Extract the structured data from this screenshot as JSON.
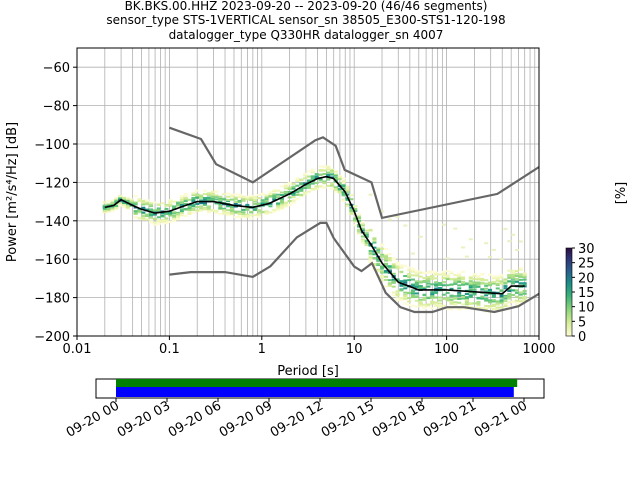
{
  "title_lines": [
    "BK.BKS.00.HHZ   2023-09-20 -- 2023-09-20  (46/46 segments)",
    "sensor_type STS-1VERTICAL sensor_sn 38505_E300-STS1-120-198",
    "datalogger_type Q330HR datalogger_sn 4007"
  ],
  "chart_data": [
    {
      "type": "heatmap",
      "xlabel": "Period [s]",
      "ylabel": "Power [m²/s⁴/Hz] [dB]",
      "xscale": "log",
      "xlim": [
        0.01,
        1000
      ],
      "ylim": [
        -200,
        -50
      ],
      "xtick_labels": [
        "0.01",
        "0.1",
        "1",
        "10",
        "100",
        "1000"
      ],
      "ytick_labels": [
        "−60",
        "−80",
        "−100",
        "−120",
        "−140",
        "−160",
        "−180",
        "−200"
      ],
      "yticks": [
        -60,
        -80,
        -100,
        -120,
        -140,
        -160,
        -180,
        -200
      ],
      "grid": true,
      "colorbar": {
        "label": "[%]",
        "range": [
          0,
          30
        ],
        "tick_labels": [
          "0",
          "5",
          "10",
          "15",
          "20",
          "25",
          "30"
        ],
        "ticks": [
          0,
          5,
          10,
          15,
          20,
          25,
          30
        ]
      },
      "series": [
        {
          "role": "mean",
          "color": "#000000",
          "x": [
            0.02,
            0.025,
            0.03,
            0.04,
            0.05,
            0.07,
            0.1,
            0.15,
            0.2,
            0.3,
            0.5,
            0.8,
            1.2,
            2,
            3,
            4,
            5,
            6,
            8,
            10,
            12,
            15,
            20,
            30,
            50,
            100,
            200,
            400,
            500,
            600,
            700
          ],
          "y": [
            -133,
            -132,
            -129,
            -132,
            -134,
            -136,
            -135,
            -132,
            -130,
            -130,
            -132,
            -133,
            -131,
            -126,
            -121,
            -118,
            -117,
            -118,
            -125,
            -135,
            -145,
            -152,
            -162,
            -172,
            -176,
            -176,
            -177,
            -178,
            -174,
            -174,
            -174
          ]
        },
        {
          "role": "nhnm",
          "color": "#666666",
          "x": [
            0.1,
            0.22,
            0.32,
            0.8,
            3.8,
            4.6,
            6.3,
            7.9,
            15.4,
            20,
            354.8,
            1000
          ],
          "y": [
            -91.5,
            -97.4,
            -110.5,
            -120,
            -98,
            -96.5,
            -101,
            -113.5,
            -120,
            -138.5,
            -126,
            -112
          ]
        },
        {
          "role": "nlnm",
          "color": "#666666",
          "x": [
            0.1,
            0.17,
            0.4,
            0.8,
            1.24,
            2.4,
            4.3,
            5,
            6,
            10,
            12,
            15.6,
            21.9,
            31.6,
            45,
            70,
            101,
            154,
            328,
            600,
            1000
          ],
          "y": [
            -168,
            -166.7,
            -166.7,
            -169.2,
            -163.7,
            -148.6,
            -141.1,
            -141.1,
            -149,
            -163.8,
            -166.2,
            -162.1,
            -177.5,
            -185,
            -187.5,
            -187.5,
            -185,
            -185,
            -187.5,
            -184.5,
            -178
          ]
        }
      ]
    },
    {
      "type": "bar",
      "xlim": [
        "09-20 00",
        "09-21 00"
      ],
      "xtick_labels": [
        "09-20 00",
        "09-20 03",
        "09-20 06",
        "09-20 09",
        "09-20 12",
        "09-20 15",
        "09-20 18",
        "09-20 21",
        "09-21 00"
      ],
      "xtick_hours": [
        0,
        3,
        6,
        9,
        12,
        15,
        18,
        21,
        24
      ],
      "series": [
        {
          "color": "#008000",
          "start_hour": 0,
          "end_hour": 23.6
        },
        {
          "color": "#0000ff",
          "start_hour": 0,
          "end_hour": 23.4
        }
      ]
    }
  ]
}
